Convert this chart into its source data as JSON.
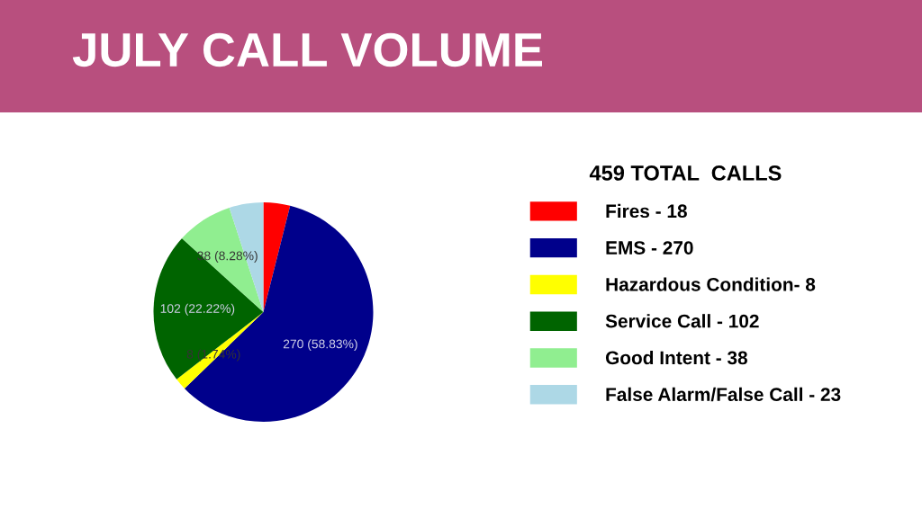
{
  "chart_data": {
    "type": "pie",
    "title": "JULY CALL VOLUME",
    "legend_title": "459 TOTAL  CALLS",
    "categories": [
      "Fires - 18",
      "EMS - 270",
      "Hazardous Condition- 8",
      "Service Call - 102",
      "Good Intent - 38",
      "False Alarm/False Call - 23"
    ],
    "values": [
      18,
      270,
      8,
      102,
      38,
      23
    ],
    "colors": [
      "#ff0000",
      "#00008b",
      "#ffff00",
      "#006400",
      "#90ee90",
      "#add8e6"
    ],
    "value_labels": [
      null,
      "270 (58.83%)",
      "8 (1.74%)",
      "102 (22.22%)",
      "38 (8.28%)",
      null
    ],
    "legend": "right"
  }
}
